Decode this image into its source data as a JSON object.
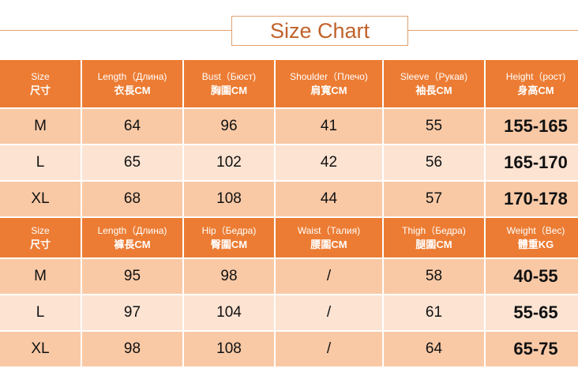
{
  "title": "Size Chart",
  "colors": {
    "header": "#ec7c33",
    "row_dark": "#f9c9a6",
    "row_light": "#fce3d2",
    "title": "#c0622a"
  },
  "tops": {
    "headers": [
      {
        "en": "Size",
        "cn": "尺寸"
      },
      {
        "en": "Length（Длина)",
        "cn": "衣長CM"
      },
      {
        "en": "Bust（Бюст)",
        "cn": "胸圍CM"
      },
      {
        "en": "Shoulder（Плечо)",
        "cn": "肩寬CM"
      },
      {
        "en": "Sleeve（Рукав)",
        "cn": "袖長CM"
      },
      {
        "en": "Height（рост)",
        "cn": "身高CM"
      }
    ],
    "rows": [
      [
        "M",
        "64",
        "96",
        "41",
        "55",
        "155-165"
      ],
      [
        "L",
        "65",
        "102",
        "42",
        "56",
        "165-170"
      ],
      [
        "XL",
        "68",
        "108",
        "44",
        "57",
        "170-178"
      ]
    ]
  },
  "bottoms": {
    "headers": [
      {
        "en": "Size",
        "cn": "尺寸"
      },
      {
        "en": "Length（Длина)",
        "cn": "褲長CM"
      },
      {
        "en": "Hip（Бедра)",
        "cn": "臀圍CM"
      },
      {
        "en": "Waist（Талия)",
        "cn": "腰圍CM"
      },
      {
        "en": "Thigh（Бедра)",
        "cn": "腿圍CM"
      },
      {
        "en": "Weight（Вес)",
        "cn": "體重KG"
      }
    ],
    "rows": [
      [
        "M",
        "95",
        "98",
        "/",
        "58",
        "40-55"
      ],
      [
        "L",
        "97",
        "104",
        "/",
        "61",
        "55-65"
      ],
      [
        "XL",
        "98",
        "108",
        "/",
        "64",
        "65-75"
      ]
    ]
  }
}
